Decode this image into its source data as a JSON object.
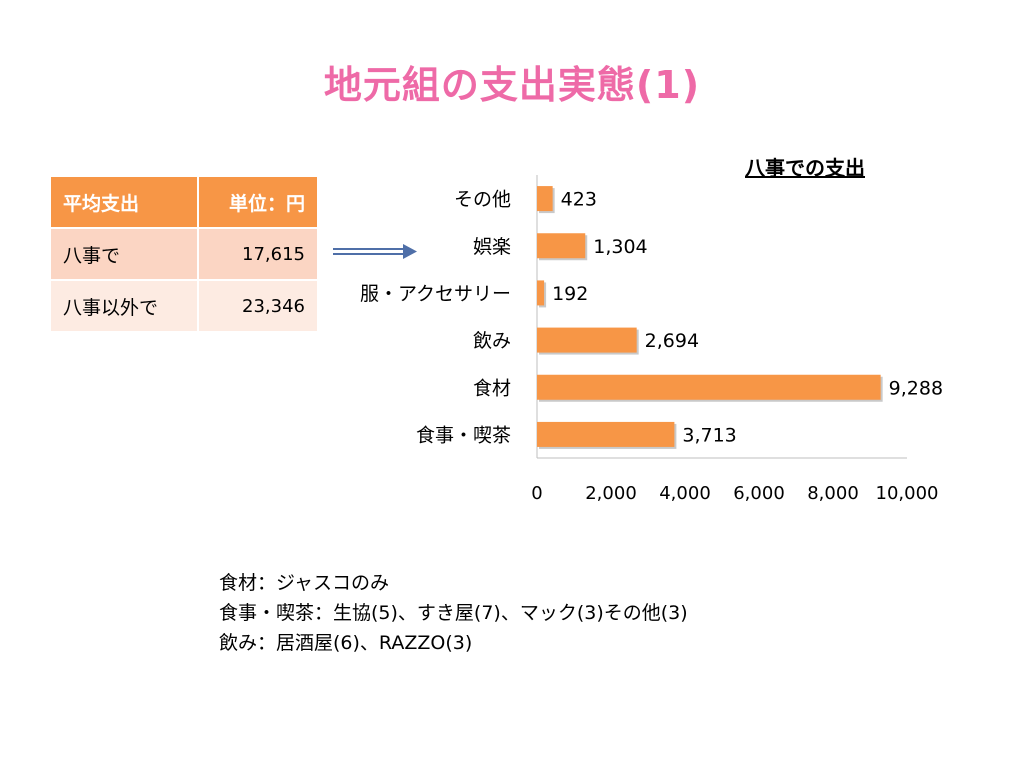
{
  "title": "地元組の支出実態(1)",
  "table": {
    "headers": [
      "平均支出",
      "単位：円"
    ],
    "rows": [
      {
        "label": "八事で",
        "value": "17,615"
      },
      {
        "label": "八事以外で",
        "value": "23,346"
      }
    ]
  },
  "chart_data": {
    "type": "bar",
    "orientation": "horizontal",
    "title": "八事での支出",
    "categories": [
      "その他",
      "娯楽",
      "服・アクセサリー",
      "飲み",
      "食材",
      "食事・喫茶"
    ],
    "values": [
      423,
      1304,
      192,
      2694,
      9288,
      3713
    ],
    "value_labels": [
      "423",
      "1,304",
      "192",
      "2,694",
      "9,288",
      "3,713"
    ],
    "xlim": [
      0,
      10000
    ],
    "x_ticks": [
      "0",
      "2,000",
      "4,000",
      "6,000",
      "8,000",
      "10,000"
    ],
    "grid": false,
    "bar_color": "#f79646"
  },
  "notes": [
    "食材：ジャスコのみ",
    "食事・喫茶：生協(5)、すき屋(7)、マック(3)その他(3)",
    "飲み：居酒屋(6)、RAZZO(3)"
  ]
}
